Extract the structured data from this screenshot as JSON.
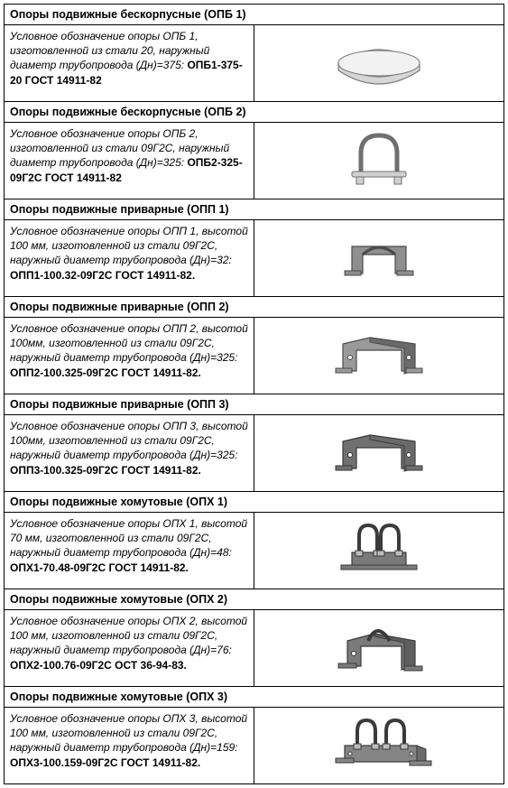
{
  "rows": [
    {
      "title": "Опоры подвижные бескорпусные (ОПБ 1)",
      "desc": "Условное обозначение опоры ОПБ 1, изготовленной из стали 20,  наружный диаметр трубопровода (Дн)=375: ",
      "code": "ОПБ1-375-20 ГОСТ 14911-82",
      "icon": "saddle",
      "icon_fill": "#d6d6d6",
      "icon_stroke": "#7a7a7a"
    },
    {
      "title": "Опоры подвижные бескорпусные (ОПБ 2)",
      "desc": "Условное обозначение опоры ОПБ 2, изготовленной из стали 09Г2С, наружный диаметр трубопровода (Дн)=325: ",
      "code": "ОПБ2-325-09Г2С ГОСТ 14911-82",
      "icon": "ubolt",
      "icon_fill": "#d0d0d0",
      "icon_stroke": "#6f6f6f"
    },
    {
      "title": "Опоры подвижные приварные (ОПП 1)",
      "desc": "Условное обозначение опоры ОПП 1,  высотой 100 мм, изготовленной из стали 09Г2С,  наружный диаметр трубопровода (Дн)=32: ",
      "code": "ОПП1-100.32-09Г2С ГОСТ 14911-82.",
      "icon": "bracket_curved",
      "icon_fill": "#8f8f8f",
      "icon_stroke": "#4a4a4a"
    },
    {
      "title": "Опоры подвижные приварные (ОПП 2)",
      "desc": "Условное обозначение опоры ОПП 2, высотой 100мм, изготовленной из стали 09Г2С,  наружный диаметр трубопровода (Дн)=325: ",
      "code": "ОПП2-100.325-09Г2С ГОСТ 14911-82.",
      "icon": "bracket_wide",
      "icon_fill": "#9a9a9a",
      "icon_stroke": "#4a4a4a"
    },
    {
      "title": "Опоры подвижные приварные (ОПП 3)",
      "desc": "Условное обозначение опоры ОПП 3, высотой 100мм, изготовленной из стали 09Г2С, наружный диаметр трубопровода (Дн)=325: ",
      "code": "ОПП3-100.325-09Г2С ГОСТ 14911-82.",
      "icon": "bracket_wide",
      "icon_fill": "#707070",
      "icon_stroke": "#3a3a3a"
    },
    {
      "title": "Опоры подвижные хомутовые (ОПХ 1)",
      "desc": "Условное обозначение опоры ОПХ 1, высотой 70 мм, изготовленной из стали 09Г2С, наружный диаметр трубопровода (Дн)=48: ",
      "code": "ОПХ1-70.48-09Г2С ГОСТ 14911-82.",
      "icon": "clamp_double",
      "icon_fill": "#7a7a7a",
      "icon_stroke": "#3a3a3a"
    },
    {
      "title": "Опоры подвижные хомутовые (ОПХ 2)",
      "desc": "Условное обозначение опоры ОПХ 2, высотой 100 мм, изготовленной из стали 09Г2С, наружный диаметр трубопровода (Дн)=76: ",
      "code": "ОПХ2-100.76-09Г2С ОСТ 36-94-83.",
      "icon": "clamp_box",
      "icon_fill": "#7a7a7a",
      "icon_stroke": "#3a3a3a"
    },
    {
      "title": "Опоры подвижные хомутовые (ОПХ 3)",
      "desc": "Условное обозначение опоры ОПХ 3, высотой 100 мм, изготовленной из стали 09Г2С, наружный диаметр трубопровода (Дн)=159: ",
      "code": "ОПХ3-100.159-09Г2С ГОСТ 14911-82.",
      "icon": "clamp_wide",
      "icon_fill": "#858585",
      "icon_stroke": "#3a3a3a"
    }
  ]
}
